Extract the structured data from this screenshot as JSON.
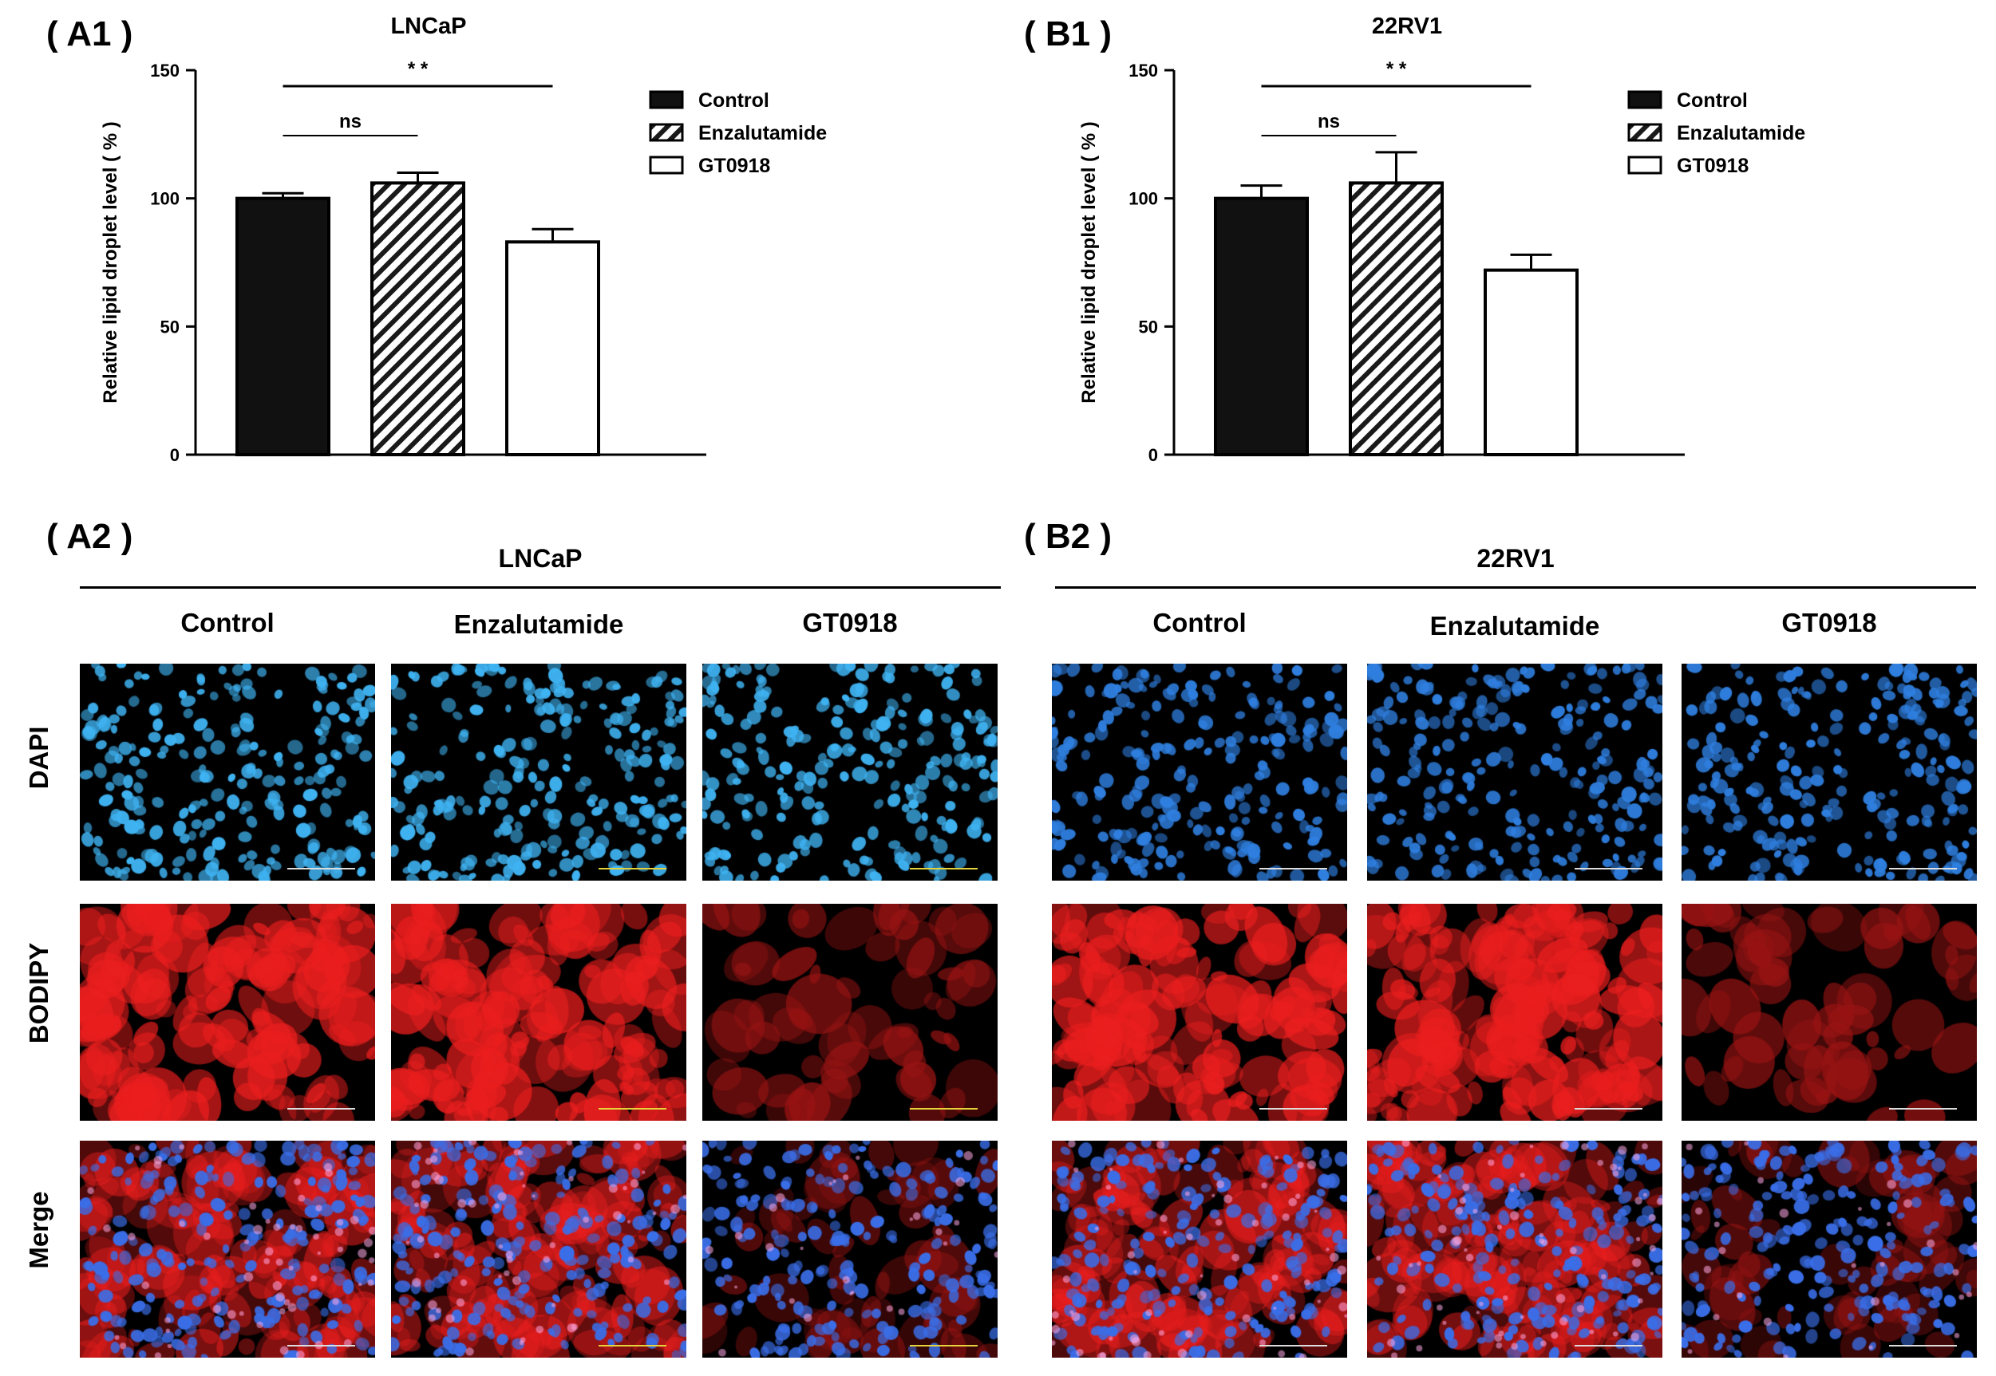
{
  "panels": {
    "A1": "( A1 )",
    "B1": "( B1 )",
    "A2": "( A2 )",
    "B2": "( B2 )"
  },
  "chart_data": [
    {
      "type": "bar",
      "title": "LNCaP",
      "ylabel": "Relative lipid droplet level ( % )",
      "ylim": [
        0,
        150
      ],
      "yticks": [
        0,
        50,
        100,
        150
      ],
      "categories": [
        "Control",
        "Enzalutamide",
        "GT0918"
      ],
      "values": [
        100,
        106,
        83
      ],
      "errors": [
        2,
        4,
        5
      ],
      "patterns": [
        "solid",
        "hatch",
        "open"
      ],
      "legend": [
        "Control",
        "Enzalutamide",
        "GT0918"
      ],
      "significance": [
        {
          "label": "ns",
          "from": 0,
          "to": 1
        },
        {
          "label": "* *",
          "from": 0,
          "to": 2
        }
      ]
    },
    {
      "type": "bar",
      "title": "22RV1",
      "ylabel": "Relative lipid droplet level ( % )",
      "ylim": [
        0,
        150
      ],
      "yticks": [
        0,
        50,
        100,
        150
      ],
      "categories": [
        "Control",
        "Enzalutamide",
        "GT0918"
      ],
      "values": [
        100,
        106,
        72
      ],
      "errors": [
        5,
        12,
        6
      ],
      "patterns": [
        "solid",
        "hatch",
        "open"
      ],
      "legend": [
        "Control",
        "Enzalutamide",
        "GT0918"
      ],
      "significance": [
        {
          "label": "ns",
          "from": 0,
          "to": 1
        },
        {
          "label": "* *",
          "from": 0,
          "to": 2
        }
      ]
    }
  ],
  "microscopy": {
    "left": {
      "title": "LNCaP",
      "columns": [
        "Control",
        "Enzalutamide",
        "GT0918"
      ]
    },
    "right": {
      "title": "22RV1",
      "columns": [
        "Control",
        "Enzalutamide",
        "GT0918"
      ]
    },
    "rows": [
      "DAPI",
      "BODIPY",
      "Merge"
    ]
  }
}
